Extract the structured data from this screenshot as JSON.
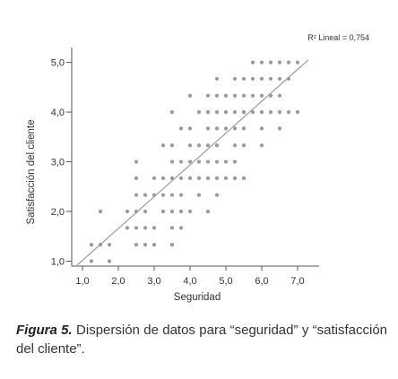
{
  "chart_data": {
    "type": "scatter",
    "xlabel": "Seguridad",
    "ylabel": "Satisfacción del cliente",
    "xlim": [
      0.7,
      7.6
    ],
    "ylim": [
      0.9,
      5.3
    ],
    "xticks": [
      1.0,
      2.0,
      3.0,
      4.0,
      5.0,
      6.0,
      7.0
    ],
    "xtick_labels": [
      "1,0",
      "2,0",
      "3,0",
      "4,0",
      "5,0",
      "6,0",
      "7,0"
    ],
    "yticks": [
      1.0,
      2.0,
      3.0,
      4.0,
      5.0
    ],
    "ytick_labels": [
      "1,0",
      "2,0",
      "3,0",
      "4,0",
      "5,0"
    ],
    "grid": false,
    "annotation": "R² Lineal = 0,754",
    "fit_line": {
      "x": [
        0.85,
        7.3
      ],
      "y": [
        0.92,
        5.05
      ]
    },
    "point_color": "#999999",
    "line_color": "#9a9a9a",
    "points": [
      [
        1.25,
        1.33
      ],
      [
        1.5,
        1.33
      ],
      [
        1.75,
        1.33
      ],
      [
        1.25,
        1.0
      ],
      [
        1.75,
        1.0
      ],
      [
        2.5,
        1.33
      ],
      [
        2.75,
        1.33
      ],
      [
        3.0,
        1.33
      ],
      [
        3.5,
        1.33
      ],
      [
        2.25,
        1.67
      ],
      [
        2.5,
        1.67
      ],
      [
        2.75,
        1.67
      ],
      [
        3.0,
        1.67
      ],
      [
        3.5,
        1.67
      ],
      [
        3.75,
        1.67
      ],
      [
        1.5,
        2.0
      ],
      [
        2.25,
        2.0
      ],
      [
        2.5,
        2.0
      ],
      [
        2.75,
        2.0
      ],
      [
        3.25,
        2.0
      ],
      [
        3.5,
        2.0
      ],
      [
        3.75,
        2.0
      ],
      [
        4.0,
        2.0
      ],
      [
        4.5,
        2.0
      ],
      [
        2.5,
        2.33
      ],
      [
        2.75,
        2.33
      ],
      [
        3.0,
        2.33
      ],
      [
        3.25,
        2.33
      ],
      [
        3.5,
        2.33
      ],
      [
        3.75,
        2.33
      ],
      [
        4.25,
        2.33
      ],
      [
        4.75,
        2.33
      ],
      [
        2.5,
        2.67
      ],
      [
        3.0,
        2.67
      ],
      [
        3.25,
        2.67
      ],
      [
        3.5,
        2.67
      ],
      [
        3.75,
        2.67
      ],
      [
        4.0,
        2.67
      ],
      [
        4.25,
        2.67
      ],
      [
        4.5,
        2.67
      ],
      [
        4.75,
        2.67
      ],
      [
        5.0,
        2.67
      ],
      [
        5.25,
        2.67
      ],
      [
        5.5,
        2.67
      ],
      [
        2.5,
        3.0
      ],
      [
        3.5,
        3.0
      ],
      [
        3.75,
        3.0
      ],
      [
        4.0,
        3.0
      ],
      [
        4.25,
        3.0
      ],
      [
        4.5,
        3.0
      ],
      [
        4.75,
        3.0
      ],
      [
        5.0,
        3.0
      ],
      [
        5.25,
        3.0
      ],
      [
        3.25,
        3.33
      ],
      [
        3.5,
        3.33
      ],
      [
        4.0,
        3.33
      ],
      [
        4.25,
        3.33
      ],
      [
        4.5,
        3.33
      ],
      [
        4.75,
        3.33
      ],
      [
        5.25,
        3.33
      ],
      [
        5.5,
        3.33
      ],
      [
        6.0,
        3.33
      ],
      [
        3.75,
        3.67
      ],
      [
        4.0,
        3.67
      ],
      [
        4.5,
        3.67
      ],
      [
        4.75,
        3.67
      ],
      [
        5.0,
        3.67
      ],
      [
        5.25,
        3.67
      ],
      [
        5.5,
        3.67
      ],
      [
        6.0,
        3.67
      ],
      [
        6.5,
        3.67
      ],
      [
        3.5,
        4.0
      ],
      [
        4.25,
        4.0
      ],
      [
        4.5,
        4.0
      ],
      [
        4.75,
        4.0
      ],
      [
        5.0,
        4.0
      ],
      [
        5.25,
        4.0
      ],
      [
        5.5,
        4.0
      ],
      [
        5.75,
        4.0
      ],
      [
        6.0,
        4.0
      ],
      [
        6.25,
        4.0
      ],
      [
        6.5,
        4.0
      ],
      [
        6.75,
        4.0
      ],
      [
        7.0,
        4.0
      ],
      [
        4.0,
        4.33
      ],
      [
        4.5,
        4.33
      ],
      [
        4.75,
        4.33
      ],
      [
        5.0,
        4.33
      ],
      [
        5.25,
        4.33
      ],
      [
        5.5,
        4.33
      ],
      [
        5.75,
        4.33
      ],
      [
        6.0,
        4.33
      ],
      [
        6.25,
        4.33
      ],
      [
        6.5,
        4.33
      ],
      [
        4.75,
        4.67
      ],
      [
        5.25,
        4.67
      ],
      [
        5.5,
        4.67
      ],
      [
        5.75,
        4.67
      ],
      [
        6.0,
        4.67
      ],
      [
        6.25,
        4.67
      ],
      [
        6.5,
        4.67
      ],
      [
        6.75,
        4.67
      ],
      [
        5.75,
        5.0
      ],
      [
        6.0,
        5.0
      ],
      [
        6.25,
        5.0
      ],
      [
        6.5,
        5.0
      ],
      [
        6.75,
        5.0
      ],
      [
        7.0,
        5.0
      ]
    ]
  },
  "caption": {
    "figure_label": "Figura 5.",
    "text": "Dispersión de datos para “seguridad” y “satisfacción del cliente”."
  }
}
